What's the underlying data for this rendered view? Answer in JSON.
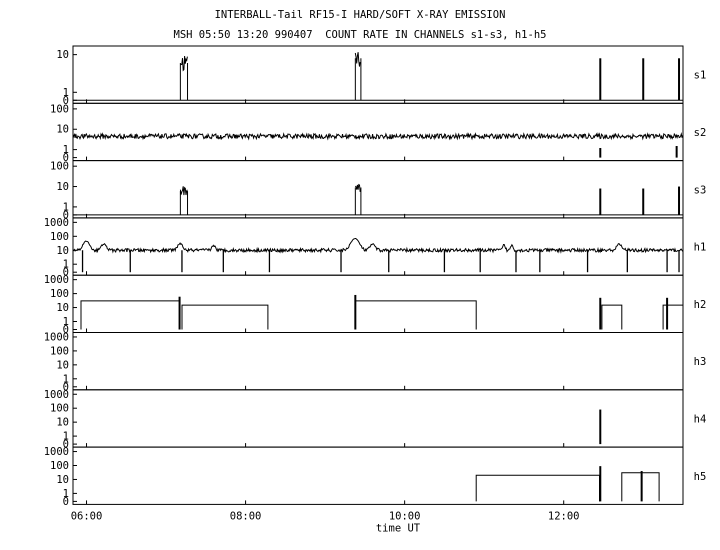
{
  "title_line1": "INTERBALL-Tail RF15-I HARD/SOFT X-RAY EMISSION",
  "title_line2": "MSH 05:50 13:20 990407  COUNT RATE IN CHANNELS s1-s3, h1-h5",
  "chart_data": {
    "type": "line",
    "xlabel": "time UT",
    "xlim": [
      5.83,
      13.5
    ],
    "x_ticks": [
      6,
      8,
      10,
      12
    ],
    "x_tick_labels": [
      "06:00",
      "08:00",
      "10:00",
      "12:00"
    ],
    "yscale": "log",
    "panels": [
      {
        "name": "s1",
        "ytick_labels": [
          "0",
          "1",
          "10"
        ],
        "ymax": 15,
        "segments": [
          {
            "t0": 5.83,
            "t1": 13.5,
            "base": 0,
            "noise": 0
          },
          {
            "t0": 7.18,
            "t1": 7.27,
            "base": 6,
            "noise": 0.25
          },
          {
            "t0": 9.38,
            "t1": 9.45,
            "base": 8,
            "noise": 0.25
          }
        ],
        "spikes": [
          [
            12.46,
            8
          ],
          [
            13.0,
            8
          ],
          [
            13.45,
            8
          ]
        ]
      },
      {
        "name": "s2",
        "ytick_labels": [
          "0",
          "1",
          "10",
          "100"
        ],
        "ymax": 150,
        "segments": [
          {
            "t0": 5.83,
            "t1": 13.5,
            "base": 4.5,
            "noise": 0.12
          }
        ],
        "spikes": [
          [
            12.46,
            1.2
          ],
          [
            13.42,
            1.5
          ]
        ]
      },
      {
        "name": "s3",
        "ytick_labels": [
          "0",
          "1",
          "10",
          "100"
        ],
        "ymax": 150,
        "segments": [
          {
            "t0": 5.83,
            "t1": 13.5,
            "base": 0,
            "noise": 0
          },
          {
            "t0": 7.18,
            "t1": 7.27,
            "base": 6,
            "noise": 0.25
          },
          {
            "t0": 9.38,
            "t1": 9.45,
            "base": 9,
            "noise": 0.25
          }
        ],
        "spikes": [
          [
            12.46,
            8
          ],
          [
            13.0,
            8
          ],
          [
            13.45,
            10
          ]
        ]
      },
      {
        "name": "h1",
        "ytick_labels": [
          "0",
          "1",
          "10",
          "100",
          "1000"
        ],
        "ymax": 1500,
        "segments": [
          {
            "t0": 5.83,
            "t1": 13.5,
            "base": 10,
            "noise": 0.12
          }
        ],
        "bumps": [
          [
            6.0,
            35,
            0.05
          ],
          [
            6.22,
            18,
            0.04
          ],
          [
            7.18,
            20,
            0.04
          ],
          [
            7.6,
            12,
            0.03
          ],
          [
            9.38,
            60,
            0.06
          ],
          [
            9.6,
            18,
            0.04
          ],
          [
            11.25,
            15,
            0.02
          ],
          [
            11.35,
            14,
            0.02
          ],
          [
            12.7,
            18,
            0.04
          ]
        ],
        "dips": [
          5.95,
          6.55,
          7.2,
          7.72,
          8.3,
          9.2,
          9.8,
          10.5,
          10.95,
          11.4,
          11.7,
          12.3,
          12.8,
          13.3,
          13.45
        ]
      },
      {
        "name": "h2",
        "ytick_labels": [
          "0",
          "1",
          "10",
          "100",
          "1000"
        ],
        "ymax": 1500,
        "steps": [
          [
            5.93,
            7.17,
            30
          ],
          [
            7.2,
            8.28,
            15
          ],
          [
            9.38,
            10.9,
            30
          ],
          [
            12.48,
            12.73,
            15
          ],
          [
            13.25,
            13.5,
            15
          ]
        ],
        "spikes": [
          [
            7.17,
            60
          ],
          [
            9.38,
            80
          ],
          [
            12.46,
            50
          ],
          [
            13.3,
            50
          ]
        ]
      },
      {
        "name": "h3",
        "ytick_labels": [
          "0",
          "1",
          "10",
          "100",
          "1000"
        ],
        "ymax": 1500
      },
      {
        "name": "h4",
        "ytick_labels": [
          "0",
          "1",
          "10",
          "100",
          "1000"
        ],
        "ymax": 1500,
        "spikes": [
          [
            12.46,
            80
          ]
        ]
      },
      {
        "name": "h5",
        "ytick_labels": [
          "0",
          "1",
          "10",
          "100",
          "1000"
        ],
        "ymax": 1500,
        "steps": [
          [
            10.9,
            12.45,
            20
          ],
          [
            12.73,
            13.2,
            30
          ]
        ],
        "spikes": [
          [
            12.46,
            90
          ],
          [
            12.98,
            40
          ]
        ]
      }
    ]
  }
}
